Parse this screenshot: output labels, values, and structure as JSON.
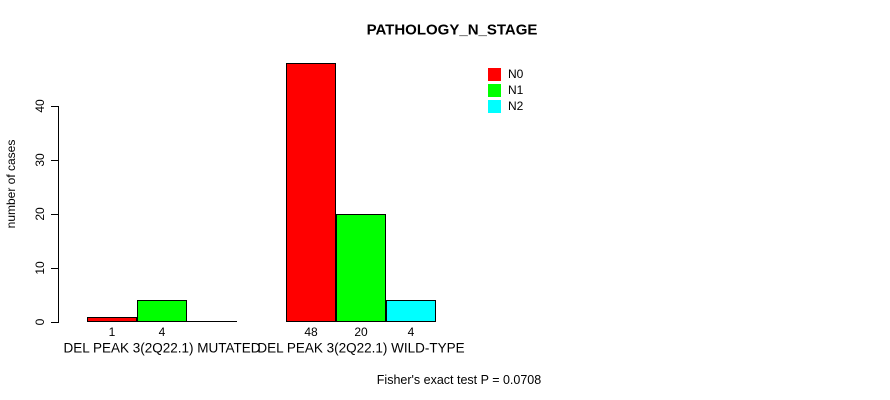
{
  "title": "PATHOLOGY_N_STAGE",
  "footer_note": "Fisher's exact test P = 0.0708",
  "colors": {
    "n0": "#FF0000",
    "n1": "#00FF00",
    "n2": "#00FFFF",
    "axis": "#000000",
    "background": "#FFFFFF"
  },
  "chart_data": {
    "type": "bar",
    "title": "PATHOLOGY_N_STAGE",
    "xlabel": "",
    "ylabel": "number of cases",
    "ylim": [
      0,
      50
    ],
    "y_ticks": [
      0,
      10,
      20,
      30,
      40
    ],
    "grid": false,
    "legend_position": "top-right-inside",
    "categories": [
      "DEL PEAK  3(2Q22.1)  MUTATED",
      "DEL PEAK  3(2Q22.1)  WILD-TYPE"
    ],
    "series": [
      {
        "name": "N0",
        "color": "#FF0000",
        "values": [
          1,
          48
        ]
      },
      {
        "name": "N1",
        "color": "#00FF00",
        "values": [
          4,
          20
        ]
      },
      {
        "name": "N2",
        "color": "#00FFFF",
        "values": [
          0,
          4
        ]
      }
    ],
    "bar_value_labels": [
      [
        "1",
        "4",
        ""
      ],
      [
        "48",
        "20",
        "4"
      ]
    ],
    "annotation": "Fisher's exact test P = 0.0708"
  }
}
